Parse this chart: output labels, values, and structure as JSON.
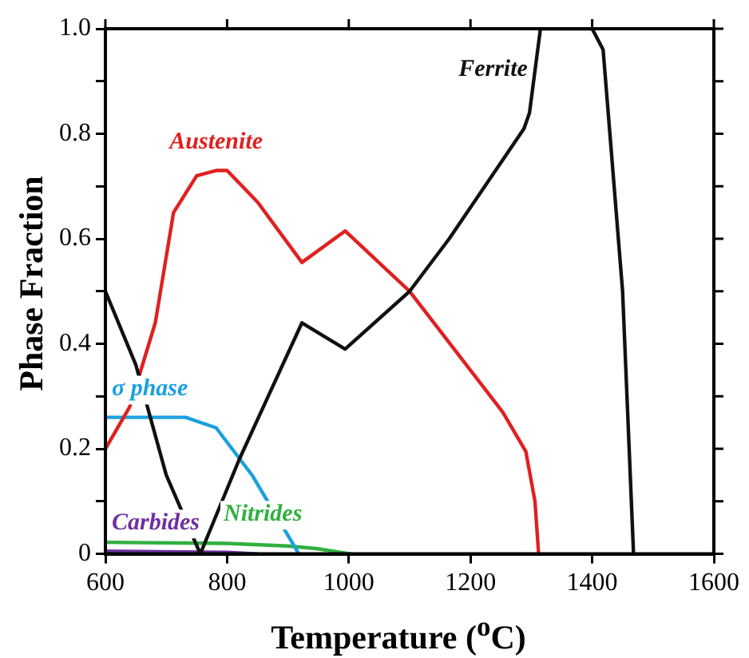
{
  "chart_data": {
    "type": "line",
    "xlabel": "Temperature ($^{o}$C)",
    "ylabel": "Phase Fraction",
    "xlim": [
      600,
      1600
    ],
    "xticks": [
      600,
      800,
      1000,
      1200,
      1400,
      1600
    ],
    "ylim": [
      0,
      1
    ],
    "yticks": [
      0,
      {
        "value": 0.1,
        "label": null
      },
      {
        "value": 0.2,
        "label": "0.2"
      },
      {
        "value": 0.3,
        "label": null
      },
      {
        "value": 0.4,
        "label": "0.4"
      },
      {
        "value": 0.5,
        "label": null
      },
      {
        "value": 0.6,
        "label": "0.6"
      },
      {
        "value": 0.7,
        "label": null
      },
      {
        "value": 0.8,
        "label": "0.8"
      },
      {
        "value": 0.9,
        "label": null
      },
      {
        "value": 1,
        "label": "1.0"
      }
    ],
    "grid": false,
    "legend": false,
    "marker": "none",
    "line_style": "solid",
    "series": [
      {
        "name": "Ferrite",
        "color": "#111111",
        "x": [
          600,
          650,
          700,
          756,
          820,
          923,
          994,
          1100,
          1165,
          1288,
          1297,
          1315,
          1400,
          1418,
          1450,
          1468
        ],
        "values": [
          0.5,
          0.36,
          0.15,
          0,
          0.18,
          0.44,
          0.39,
          0.5,
          0.6,
          0.81,
          0.84,
          1,
          1,
          0.96,
          0.5,
          0
        ]
      },
      {
        "name": "Austenite",
        "color": "#e02020",
        "x": [
          600,
          640,
          682,
          712,
          750,
          782,
          800,
          850,
          923,
          994,
          1100,
          1253,
          1291,
          1306,
          1312
        ],
        "values": [
          0.2,
          0.28,
          0.44,
          0.65,
          0.72,
          0.73,
          0.73,
          0.67,
          0.555,
          0.615,
          0.5,
          0.27,
          0.195,
          0.1,
          0
        ]
      },
      {
        "name": "σ phase",
        "color": "#1aa0e0",
        "x": [
          600,
          732,
          782,
          841,
          918
        ],
        "values": [
          0.26,
          0.26,
          0.24,
          0.15,
          0
        ]
      },
      {
        "name": "Carbides",
        "color": "#7030a0",
        "x": [
          600,
          800,
          850
        ],
        "values": [
          0.005,
          0.003,
          0
        ]
      },
      {
        "name": "Nitrides",
        "color": "#30b040",
        "x": [
          600,
          800,
          900,
          947,
          1003
        ],
        "values": [
          0.022,
          0.02,
          0.015,
          0.01,
          0
        ]
      }
    ]
  }
}
